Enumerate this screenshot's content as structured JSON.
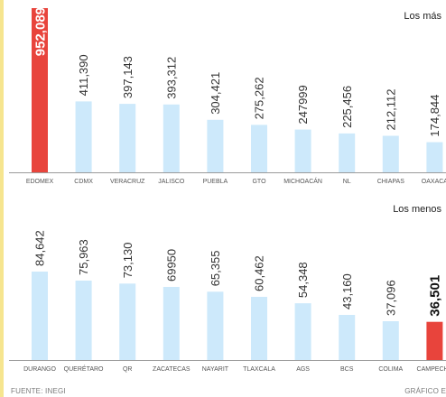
{
  "chart_data": [
    {
      "type": "bar",
      "title": "Los más",
      "categories": [
        "EDOMEX",
        "CDMX",
        "VERACRUZ",
        "JALISCO",
        "PUEBLA",
        "GTO",
        "MICHOACÁN",
        "NL",
        "CHIAPAS",
        "OAXACA"
      ],
      "values": [
        952089,
        411390,
        397143,
        393312,
        304421,
        275262,
        247999,
        225456,
        212112,
        174844
      ],
      "value_labels": [
        "952,089",
        "411,390",
        "397,143",
        "393,312",
        "304,421",
        "275,262",
        "247999",
        "225,456",
        "212,112",
        "174,844"
      ],
      "highlight_index": 0,
      "grid": false,
      "legend": "none"
    },
    {
      "type": "bar",
      "title": "Los menos",
      "categories": [
        "DURANGO",
        "QUERÉTARO",
        "QR",
        "ZACATECAS",
        "NAYARIT",
        "TLAXCALA",
        "AGS",
        "BCS",
        "COLIMA",
        "CAMPECHE"
      ],
      "values": [
        84642,
        75963,
        73130,
        69950,
        65355,
        60462,
        54348,
        43160,
        37096,
        36501
      ],
      "value_labels": [
        "84,642",
        "75,963",
        "73,130",
        "69950",
        "65,355",
        "60,462",
        "54,348",
        "43,160",
        "37,096",
        "36,501"
      ],
      "highlight_index": 9,
      "grid": false,
      "legend": "none"
    }
  ],
  "footer": {
    "source": "FUENTE: INEGI",
    "credit": "GRÁFICO E"
  },
  "colors": {
    "bar": "#cde9fb",
    "highlight": "#e8443c",
    "accent": "#f6e58f",
    "text": "#333333",
    "axis": "#9a9a9a"
  }
}
